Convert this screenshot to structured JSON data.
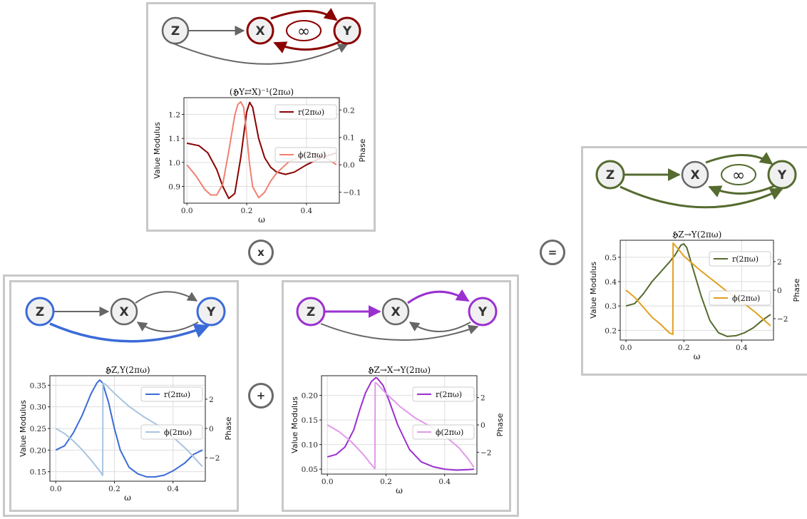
{
  "colors": {
    "gray": "#666666",
    "dark_red": "#8b0000",
    "salmon": "#f08070",
    "blue": "#3b6bd8",
    "light_blue": "#a8c4e0",
    "purple": "#9b30d0",
    "light_purple": "#e09ae8",
    "olive": "#556b2f",
    "gold": "#e0a020"
  },
  "operators": {
    "times": "x",
    "plus": "+",
    "equals": "="
  },
  "panels": [
    {
      "id": "top",
      "nodes": {
        "z": "Z",
        "x": "X",
        "y": "Y"
      },
      "loop_symbol": "∞",
      "chart_title": "(𝕳Y⇄X)⁻¹(2πω)",
      "ylabel_left": "Value Modulus",
      "ylabel_right": "Phase",
      "xlabel": "ω",
      "legend": [
        "r(2πω)",
        "ϕ(2πω)"
      ],
      "xticks": [
        "0.0",
        "0.2",
        "0.4"
      ],
      "yticks_left": [
        "0.9",
        "1.0",
        "1.1",
        "1.2"
      ],
      "yticks_right": [
        "−0.1",
        "0.0",
        "0.1",
        "0.2"
      ]
    },
    {
      "id": "left",
      "nodes": {
        "z": "Z",
        "x": "X",
        "y": "Y"
      },
      "chart_title": "𝕳Z,Y(2πω)",
      "ylabel_left": "Value Modulus",
      "ylabel_right": "Phase",
      "xlabel": "ω",
      "legend": [
        "r(2πω)",
        "ϕ(2πω)"
      ],
      "xticks": [
        "0.0",
        "0.2",
        "0.4"
      ],
      "yticks_left": [
        "0.15",
        "0.20",
        "0.25",
        "0.30",
        "0.35"
      ],
      "yticks_right": [
        "−2",
        "0",
        "2"
      ]
    },
    {
      "id": "mid",
      "nodes": {
        "z": "Z",
        "x": "X",
        "y": "Y"
      },
      "chart_title": "𝕳Z→X→Y(2πω)",
      "ylabel_left": "Value Modulus",
      "ylabel_right": "Phase",
      "xlabel": "ω",
      "legend": [
        "r(2πω)",
        "ϕ(2πω)"
      ],
      "xticks": [
        "0.0",
        "0.2",
        "0.4"
      ],
      "yticks_left": [
        "0.05",
        "0.10",
        "0.15",
        "0.20"
      ],
      "yticks_right": [
        "−2",
        "0",
        "2"
      ]
    },
    {
      "id": "right",
      "nodes": {
        "z": "Z",
        "x": "X",
        "y": "Y"
      },
      "loop_symbol": "∞",
      "chart_title": "𝕳Z→Y(2πω)",
      "ylabel_left": "Value Modulus",
      "ylabel_right": "Phase",
      "xlabel": "ω",
      "legend": [
        "r(2πω)",
        "ϕ(2πω)"
      ],
      "xticks": [
        "0.0",
        "0.2",
        "0.4"
      ],
      "yticks_left": [
        "0.2",
        "0.3",
        "0.4",
        "0.5"
      ],
      "yticks_right": [
        "−2",
        "0",
        "2"
      ]
    }
  ],
  "chart_data": [
    {
      "type": "line",
      "title": "(𝕳Y⇄X)⁻¹(2πω)",
      "xlabel": "ω",
      "ylabel": "Value Modulus",
      "ylabel_right": "Phase",
      "xlim": [
        -0.01,
        0.51
      ],
      "ylim": [
        0.83,
        1.27
      ],
      "ylim_right": [
        -0.14,
        0.245
      ],
      "legend_position": "upper-right",
      "series": [
        {
          "name": "r(2πω)",
          "axis": "left",
          "color": "#8b0000",
          "x": [
            0.0,
            0.04,
            0.07,
            0.1,
            0.12,
            0.14,
            0.16,
            0.18,
            0.2,
            0.21,
            0.22,
            0.24,
            0.26,
            0.28,
            0.3,
            0.33,
            0.36,
            0.4,
            0.45,
            0.5
          ],
          "y": [
            1.08,
            1.07,
            1.04,
            0.97,
            0.9,
            0.85,
            0.87,
            1.02,
            1.21,
            1.25,
            1.23,
            1.1,
            1.02,
            0.98,
            0.96,
            0.95,
            0.96,
            0.99,
            1.02,
            1.04
          ]
        },
        {
          "name": "ϕ(2πω)",
          "axis": "right",
          "color": "#f08070",
          "x": [
            0.0,
            0.03,
            0.06,
            0.08,
            0.1,
            0.12,
            0.14,
            0.16,
            0.17,
            0.18,
            0.19,
            0.2,
            0.21,
            0.22,
            0.24,
            0.26,
            0.28,
            0.3,
            0.34,
            0.38,
            0.42,
            0.46,
            0.5
          ],
          "y": [
            0.0,
            -0.04,
            -0.09,
            -0.11,
            -0.11,
            -0.07,
            0.05,
            0.18,
            0.22,
            0.23,
            0.21,
            0.11,
            0.0,
            -0.08,
            -0.12,
            -0.1,
            -0.06,
            -0.03,
            0.01,
            0.03,
            0.04,
            0.03,
            0.0
          ]
        }
      ]
    },
    {
      "type": "line",
      "title": "𝕳Z,Y(2πω)",
      "xlabel": "ω",
      "ylabel": "Value Modulus",
      "ylabel_right": "Phase",
      "xlim": [
        -0.02,
        0.51
      ],
      "ylim": [
        0.128,
        0.372
      ],
      "ylim_right": [
        -3.6,
        3.6
      ],
      "legend_position": "upper-right",
      "series": [
        {
          "name": "r(2πω)",
          "axis": "left",
          "color": "#3b6bd8",
          "x": [
            0.0,
            0.03,
            0.06,
            0.09,
            0.12,
            0.14,
            0.15,
            0.16,
            0.18,
            0.2,
            0.22,
            0.25,
            0.28,
            0.31,
            0.34,
            0.37,
            0.4,
            0.44,
            0.47,
            0.5
          ],
          "y": [
            0.2,
            0.21,
            0.24,
            0.28,
            0.33,
            0.355,
            0.362,
            0.355,
            0.31,
            0.25,
            0.2,
            0.16,
            0.145,
            0.138,
            0.138,
            0.142,
            0.152,
            0.17,
            0.19,
            0.2
          ]
        },
        {
          "name": "ϕ(2πω)",
          "axis": "right",
          "color": "#a8c4e0",
          "x": [
            0.0,
            0.03,
            0.06,
            0.09,
            0.12,
            0.15,
            0.16,
            0.161,
            0.17,
            0.2,
            0.25,
            0.3,
            0.35,
            0.4,
            0.45,
            0.5
          ],
          "y": [
            0.0,
            -0.35,
            -0.85,
            -1.45,
            -2.15,
            -2.9,
            -3.2,
            3.1,
            3.0,
            2.4,
            1.5,
            0.8,
            0.2,
            -0.6,
            -1.5,
            -2.6
          ]
        }
      ]
    },
    {
      "type": "line",
      "title": "𝕳Z→X→Y(2πω)",
      "xlabel": "ω",
      "ylabel": "Value Modulus",
      "ylabel_right": "Phase",
      "xlim": [
        -0.02,
        0.51
      ],
      "ylim": [
        0.04,
        0.24
      ],
      "ylim_right": [
        -3.6,
        3.6
      ],
      "legend_position": "upper-right",
      "series": [
        {
          "name": "r(2πω)",
          "axis": "left",
          "color": "#9b30d0",
          "x": [
            0.0,
            0.03,
            0.06,
            0.09,
            0.11,
            0.13,
            0.15,
            0.165,
            0.17,
            0.19,
            0.21,
            0.24,
            0.28,
            0.32,
            0.36,
            0.4,
            0.44,
            0.48,
            0.5
          ],
          "y": [
            0.075,
            0.08,
            0.095,
            0.13,
            0.17,
            0.205,
            0.228,
            0.236,
            0.235,
            0.22,
            0.19,
            0.14,
            0.09,
            0.065,
            0.055,
            0.05,
            0.048,
            0.049,
            0.05
          ]
        },
        {
          "name": "ϕ(2πω)",
          "axis": "right",
          "color": "#e09ae8",
          "x": [
            0.0,
            0.04,
            0.08,
            0.12,
            0.15,
            0.162,
            0.163,
            0.17,
            0.2,
            0.25,
            0.3,
            0.35,
            0.4,
            0.45,
            0.48,
            0.5
          ],
          "y": [
            0.0,
            -0.5,
            -1.2,
            -2.1,
            -2.9,
            -3.2,
            3.1,
            3.0,
            2.3,
            1.3,
            0.5,
            -0.1,
            -0.8,
            -1.7,
            -2.5,
            -3.1
          ]
        }
      ]
    },
    {
      "type": "line",
      "title": "𝕳Z→Y(2πω)",
      "xlabel": "ω",
      "ylabel": "Value Modulus",
      "ylabel_right": "Phase",
      "xlim": [
        -0.02,
        0.51
      ],
      "ylim": [
        0.16,
        0.57
      ],
      "ylim_right": [
        -3.5,
        3.5
      ],
      "legend_position": "upper-right",
      "series": [
        {
          "name": "r(2πω)",
          "axis": "left",
          "color": "#556b2f",
          "x": [
            0.0,
            0.03,
            0.06,
            0.09,
            0.12,
            0.15,
            0.17,
            0.19,
            0.2,
            0.21,
            0.23,
            0.26,
            0.29,
            0.32,
            0.35,
            0.38,
            0.41,
            0.44,
            0.47,
            0.5
          ],
          "y": [
            0.3,
            0.31,
            0.35,
            0.4,
            0.44,
            0.48,
            0.51,
            0.55,
            0.555,
            0.54,
            0.46,
            0.34,
            0.24,
            0.19,
            0.175,
            0.178,
            0.19,
            0.21,
            0.24,
            0.265
          ]
        },
        {
          "name": "ϕ(2πω)",
          "axis": "right",
          "color": "#e0a020",
          "x": [
            0.0,
            0.03,
            0.06,
            0.09,
            0.12,
            0.15,
            0.162,
            0.163,
            0.18,
            0.2,
            0.25,
            0.3,
            0.35,
            0.4,
            0.45,
            0.5
          ],
          "y": [
            0.0,
            -0.5,
            -1.2,
            -1.9,
            -2.4,
            -3.0,
            -3.1,
            3.3,
            2.9,
            2.4,
            1.5,
            0.7,
            -0.1,
            -0.8,
            -1.6,
            -2.5
          ]
        }
      ]
    }
  ]
}
